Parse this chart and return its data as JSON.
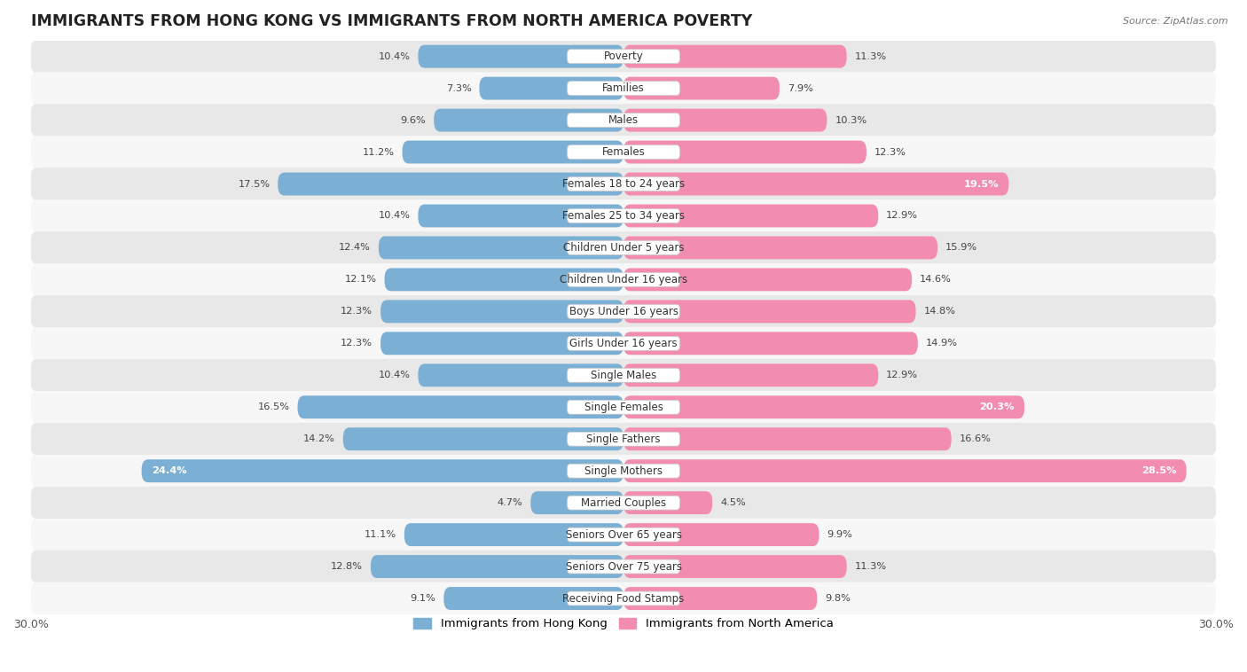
{
  "title": "IMMIGRANTS FROM HONG KONG VS IMMIGRANTS FROM NORTH AMERICA POVERTY",
  "source": "Source: ZipAtlas.com",
  "categories": [
    "Poverty",
    "Families",
    "Males",
    "Females",
    "Females 18 to 24 years",
    "Females 25 to 34 years",
    "Children Under 5 years",
    "Children Under 16 years",
    "Boys Under 16 years",
    "Girls Under 16 years",
    "Single Males",
    "Single Females",
    "Single Fathers",
    "Single Mothers",
    "Married Couples",
    "Seniors Over 65 years",
    "Seniors Over 75 years",
    "Receiving Food Stamps"
  ],
  "hk_values": [
    10.4,
    7.3,
    9.6,
    11.2,
    17.5,
    10.4,
    12.4,
    12.1,
    12.3,
    12.3,
    10.4,
    16.5,
    14.2,
    24.4,
    4.7,
    11.1,
    12.8,
    9.1
  ],
  "na_values": [
    11.3,
    7.9,
    10.3,
    12.3,
    19.5,
    12.9,
    15.9,
    14.6,
    14.8,
    14.9,
    12.9,
    20.3,
    16.6,
    28.5,
    4.5,
    9.9,
    11.3,
    9.8
  ],
  "hk_color": "#7bafd4",
  "na_color": "#f28cb1",
  "hk_label": "Immigrants from Hong Kong",
  "na_label": "Immigrants from North America",
  "axis_limit": 30.0,
  "bar_height": 0.72,
  "row_colors": [
    "#e8e8e8",
    "#f7f7f7"
  ],
  "title_fontsize": 12.5,
  "label_fontsize": 8.5,
  "value_fontsize": 8.2,
  "axis_label_fontsize": 9,
  "value_inside_threshold": 18.0
}
